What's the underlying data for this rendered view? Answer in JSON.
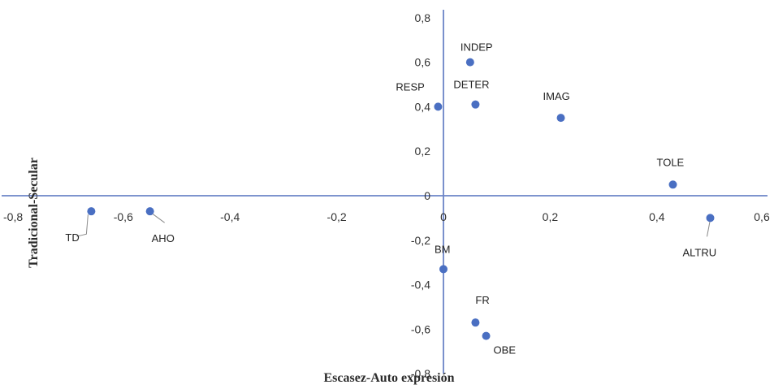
{
  "chart_data": {
    "type": "scatter",
    "xlabel": "Escasez-Auto expresión",
    "ylabel": "Tradicional-Secular",
    "xlim": [
      -0.8,
      0.6
    ],
    "ylim": [
      -0.8,
      0.8
    ],
    "x_ticks": [
      "-0,8",
      "-0,6",
      "-0,4",
      "-0,2",
      "0",
      "0,2",
      "0,4",
      "0,6"
    ],
    "y_ticks": [
      "0,8",
      "0,6",
      "0,4",
      "0,2",
      "0",
      "-0,2",
      "-0,4",
      "-0,6",
      "-0,8"
    ],
    "grid": false,
    "marker_color": "#4a6fc2",
    "points": [
      {
        "label": "INDEP",
        "x": 0.05,
        "y": 0.6
      },
      {
        "label": "DETER",
        "x": 0.06,
        "y": 0.41
      },
      {
        "label": "RESP",
        "x": -0.01,
        "y": 0.4
      },
      {
        "label": "IMAG",
        "x": 0.22,
        "y": 0.35
      },
      {
        "label": "TOLE",
        "x": 0.43,
        "y": 0.05
      },
      {
        "label": "ALTRU",
        "x": 0.5,
        "y": -0.1
      },
      {
        "label": "TD",
        "x": -0.66,
        "y": -0.07
      },
      {
        "label": "AHO",
        "x": -0.55,
        "y": -0.07
      },
      {
        "label": "BM",
        "x": 0.0,
        "y": -0.33
      },
      {
        "label": "FR",
        "x": 0.06,
        "y": -0.57
      },
      {
        "label": "OBE",
        "x": 0.08,
        "y": -0.63
      }
    ]
  }
}
